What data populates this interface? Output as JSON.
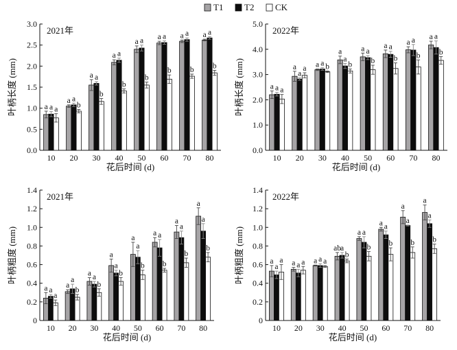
{
  "legend": [
    {
      "name": "T1",
      "color": "#a6a4a6"
    },
    {
      "name": "T2",
      "color": "#0d0d0d"
    },
    {
      "name": "CK",
      "color": "#ffffff"
    }
  ],
  "chart_data": [
    {
      "type": "bar",
      "panel_label": "2021年",
      "xlabel": "花后时间 (d)",
      "ylabel": "叶柄长度 (mm)",
      "categories": [
        "10",
        "20",
        "30",
        "40",
        "50",
        "60",
        "70",
        "80"
      ],
      "ylim": [
        0,
        3.0
      ],
      "yticks": [
        "0.0",
        "0.5",
        "1.0",
        "1.5",
        "2.0",
        "2.5",
        "3.0"
      ],
      "series": [
        {
          "name": "T1",
          "values": [
            0.85,
            1.05,
            1.55,
            2.09,
            2.4,
            2.55,
            2.59,
            2.62
          ],
          "errors": [
            0.08,
            0.03,
            0.13,
            0.06,
            0.08,
            0.04,
            0.03,
            0.02
          ],
          "letters": [
            "a",
            "a",
            "a",
            "a",
            "a",
            "a",
            "a",
            "a"
          ]
        },
        {
          "name": "T2",
          "values": [
            0.86,
            1.08,
            1.59,
            2.14,
            2.43,
            2.56,
            2.63,
            2.67
          ],
          "errors": [
            0.06,
            0.04,
            0.04,
            0.05,
            0.07,
            0.04,
            0.04,
            0.03
          ],
          "letters": [
            "a",
            "a",
            "a",
            "a",
            "a",
            "a",
            "a",
            "a"
          ]
        },
        {
          "name": "CK",
          "values": [
            0.77,
            0.93,
            1.16,
            1.41,
            1.55,
            1.69,
            1.76,
            1.84
          ],
          "errors": [
            0.1,
            0.04,
            0.07,
            0.05,
            0.07,
            0.1,
            0.05,
            0.06
          ],
          "letters": [
            "a",
            "b",
            "b",
            "b",
            "b",
            "b",
            "b",
            "b"
          ]
        }
      ]
    },
    {
      "type": "bar",
      "panel_label": "2022年",
      "xlabel": "花后时间 (d)",
      "ylabel": "叶柄长度 (mm)",
      "categories": [
        "10",
        "20",
        "30",
        "40",
        "50",
        "60",
        "70",
        "80"
      ],
      "ylim": [
        0,
        5.0
      ],
      "yticks": [
        "0.0",
        "1.0",
        "2.0",
        "3.0",
        "4.0",
        "5.0"
      ],
      "series": [
        {
          "name": "T1",
          "values": [
            2.2,
            2.93,
            3.19,
            3.58,
            3.7,
            3.82,
            3.98,
            4.17
          ],
          "errors": [
            0.15,
            0.2,
            0.03,
            0.15,
            0.15,
            0.15,
            0.12,
            0.15
          ],
          "letters": [
            "a",
            "a",
            "a",
            "a",
            "a",
            "a",
            "a",
            "a"
          ]
        },
        {
          "name": "T2",
          "values": [
            2.22,
            2.82,
            3.22,
            3.34,
            3.67,
            3.8,
            3.97,
            4.07
          ],
          "errors": [
            0.07,
            0.05,
            0.05,
            0.1,
            0.08,
            0.12,
            0.22,
            0.26
          ],
          "letters": [
            "a",
            "a",
            "a",
            "a",
            "a",
            "a",
            "a",
            "a"
          ]
        },
        {
          "name": "CK",
          "values": [
            2.03,
            2.97,
            3.11,
            3.14,
            3.19,
            3.24,
            3.3,
            3.56
          ],
          "errors": [
            0.18,
            0.1,
            0.03,
            0.08,
            0.18,
            0.22,
            0.28,
            0.15
          ],
          "letters": [
            "a",
            "a",
            "b",
            "b",
            "b",
            "b",
            "b",
            "b"
          ]
        }
      ]
    },
    {
      "type": "bar",
      "panel_label": "2021年",
      "xlabel": "花后时间 (d)",
      "ylabel": "叶柄粗度 (mm)",
      "categories": [
        "10",
        "20",
        "30",
        "40",
        "50",
        "60",
        "70",
        "80"
      ],
      "ylim": [
        0,
        1.4
      ],
      "yticks": [
        "0",
        "0.2",
        "0.4",
        "0.6",
        "0.8",
        "1.0",
        "1.2",
        "1.4"
      ],
      "series": [
        {
          "name": "T1",
          "values": [
            0.24,
            0.31,
            0.42,
            0.59,
            0.71,
            0.84,
            0.95,
            1.12
          ],
          "errors": [
            0.06,
            0.02,
            0.04,
            0.07,
            0.13,
            0.05,
            0.07,
            0.09
          ],
          "letters": [
            "a",
            "a",
            "a",
            "a",
            "a",
            "a",
            "a",
            "a"
          ]
        },
        {
          "name": "T2",
          "values": [
            0.26,
            0.34,
            0.39,
            0.51,
            0.68,
            0.78,
            0.89,
            0.96
          ],
          "errors": [
            0.02,
            0.05,
            0.03,
            0.03,
            0.07,
            0.09,
            0.07,
            0.08
          ],
          "letters": [
            "a",
            "a",
            "a",
            "a",
            "a",
            "a",
            "a",
            "a"
          ]
        },
        {
          "name": "CK",
          "values": [
            0.19,
            0.25,
            0.3,
            0.42,
            0.49,
            0.54,
            0.62,
            0.68
          ],
          "errors": [
            0.03,
            0.03,
            0.04,
            0.04,
            0.05,
            0.02,
            0.05,
            0.05
          ],
          "letters": [
            "a",
            "b",
            "b",
            "b",
            "b",
            "b",
            "b",
            "b"
          ]
        }
      ]
    },
    {
      "type": "bar",
      "panel_label": "2022年",
      "xlabel": "花后时间 (d)",
      "ylabel": "叶柄粗度 (mm)",
      "categories": [
        "10",
        "20",
        "30",
        "40",
        "50",
        "60",
        "70",
        "80"
      ],
      "ylim": [
        0,
        1.4
      ],
      "yticks": [
        "0",
        "0.2",
        "0.4",
        "0.6",
        "0.8",
        "1.0",
        "1.2",
        "1.4"
      ],
      "series": [
        {
          "name": "T1",
          "values": [
            0.53,
            0.55,
            0.59,
            0.69,
            0.88,
            0.98,
            1.11,
            1.16
          ],
          "errors": [
            0.06,
            0.02,
            0.005,
            0.04,
            0.02,
            0.02,
            0.07,
            0.08
          ],
          "letters": [
            "a",
            "a",
            "a",
            "ab",
            "a",
            "a",
            "a",
            "a"
          ]
        },
        {
          "name": "T2",
          "values": [
            0.49,
            0.51,
            0.59,
            0.7,
            0.84,
            0.92,
            1.02,
            1.04
          ],
          "errors": [
            0.04,
            0.04,
            0.02,
            0.03,
            0.06,
            0.04,
            0.005,
            0.04
          ],
          "letters": [
            "a",
            "a",
            "a",
            "a",
            "a",
            "a",
            "a",
            "a"
          ]
        },
        {
          "name": "CK",
          "values": [
            0.52,
            0.54,
            0.58,
            0.64,
            0.69,
            0.71,
            0.73,
            0.77
          ],
          "errors": [
            0.08,
            0.04,
            0.01,
            0.02,
            0.05,
            0.07,
            0.06,
            0.05
          ],
          "letters": [
            "a",
            "a",
            "a",
            "b",
            "b",
            "b",
            "b",
            "b"
          ]
        }
      ]
    }
  ]
}
